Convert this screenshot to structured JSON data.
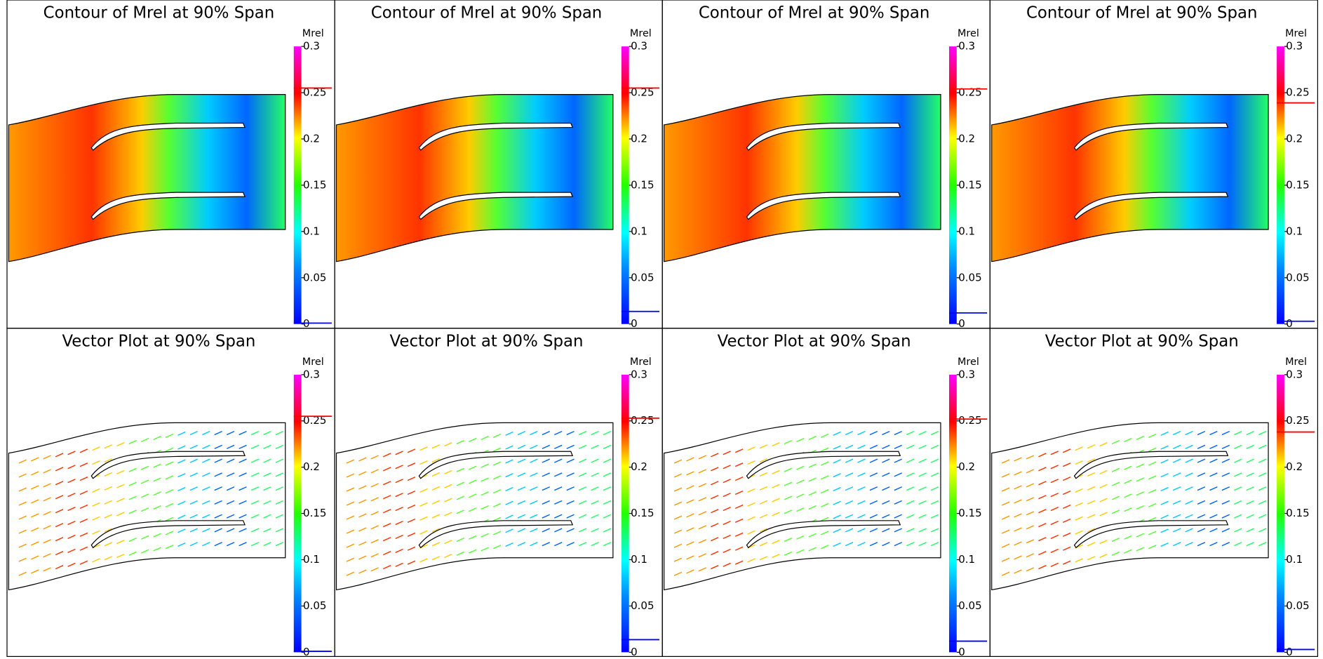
{
  "panels": [
    {
      "title": "Contour of Mrel at 90% Span",
      "colorbar_label": "Mrel",
      "colorbar_range": [
        0,
        0.3
      ],
      "ticks": [
        0,
        0.05,
        0.1,
        0.15,
        0.2,
        0.25,
        0.3
      ],
      "max_marker": 0.255,
      "min_marker": 0.001
    },
    {
      "title": "Contour of Mrel at 90% Span",
      "colorbar_label": "Mrel",
      "colorbar_range": [
        0,
        0.3
      ],
      "ticks": [
        0,
        0.05,
        0.1,
        0.15,
        0.2,
        0.25,
        0.3
      ],
      "max_marker": 0.255,
      "min_marker": 0.0136
    },
    {
      "title": "Contour of Mrel at 90% Span",
      "colorbar_label": "Mrel",
      "colorbar_range": [
        0,
        0.3
      ],
      "ticks": [
        0,
        0.05,
        0.1,
        0.15,
        0.2,
        0.25,
        0.3
      ],
      "max_marker": 0.254,
      "min_marker": 0.012
    },
    {
      "title": "Contour of Mrel at 90% Span",
      "colorbar_label": "Mrel",
      "colorbar_range": [
        0,
        0.3
      ],
      "ticks": [
        0,
        0.05,
        0.1,
        0.15,
        0.2,
        0.25,
        0.3
      ],
      "max_marker": 0.239,
      "min_marker": 0.003
    },
    {
      "title": "Vector Plot at 90% Span",
      "colorbar_label": "Mrel",
      "colorbar_range": [
        0,
        0.3
      ],
      "ticks": [
        0,
        0.05,
        0.1,
        0.15,
        0.2,
        0.25,
        0.3
      ],
      "max_marker": 0.255,
      "min_marker": 0.001
    },
    {
      "title": "Vector Plot at 90% Span",
      "colorbar_label": "Mrel",
      "colorbar_range": [
        0,
        0.3
      ],
      "ticks": [
        0,
        0.05,
        0.1,
        0.15,
        0.2,
        0.25,
        0.3
      ],
      "max_marker": 0.253,
      "min_marker": 0.0136
    },
    {
      "title": "Vector Plot at 90% Span",
      "colorbar_label": "Mrel",
      "colorbar_range": [
        0,
        0.3
      ],
      "ticks": [
        0,
        0.05,
        0.1,
        0.15,
        0.2,
        0.25,
        0.3
      ],
      "max_marker": 0.252,
      "min_marker": 0.012
    },
    {
      "title": "Vector Plot at 90% Span",
      "colorbar_label": "Mrel",
      "colorbar_range": [
        0,
        0.3
      ],
      "ticks": [
        0,
        0.05,
        0.1,
        0.15,
        0.2,
        0.25,
        0.3
      ],
      "max_marker": 0.238,
      "min_marker": 0.003
    }
  ]
}
